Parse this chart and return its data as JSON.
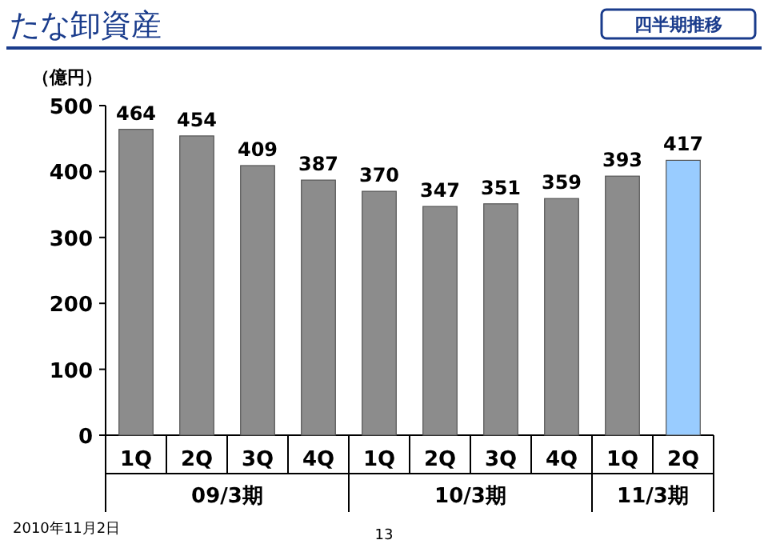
{
  "chart_data": {
    "type": "bar",
    "title": "たな卸資産",
    "subtitle": "四半期推移",
    "ylabel": "（億円）",
    "categories": [
      "1Q",
      "2Q",
      "3Q",
      "4Q",
      "1Q",
      "2Q",
      "3Q",
      "4Q",
      "1Q",
      "2Q"
    ],
    "values": [
      464,
      454,
      409,
      387,
      370,
      347,
      351,
      359,
      393,
      417
    ],
    "colors": [
      "#8c8c8c",
      "#8c8c8c",
      "#8c8c8c",
      "#8c8c8c",
      "#8c8c8c",
      "#8c8c8c",
      "#8c8c8c",
      "#8c8c8c",
      "#8c8c8c",
      "#99ccff"
    ],
    "ylim": [
      0,
      500
    ],
    "yticks": [
      0,
      100,
      200,
      300,
      400,
      500
    ],
    "data_labels": true,
    "annotations": [
      "09/3期",
      "10/3期",
      "11/3期",
      "2010年11月2日",
      "13"
    ]
  }
}
